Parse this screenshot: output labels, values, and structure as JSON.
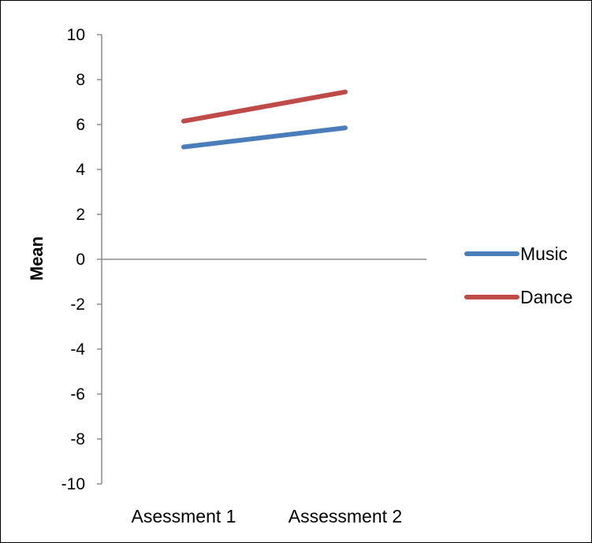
{
  "chart_data": {
    "type": "line",
    "title": "",
    "xlabel": "",
    "ylabel": "Mean",
    "ylim": [
      -10,
      10
    ],
    "yticks": [
      10,
      8,
      6,
      4,
      2,
      0,
      -2,
      -4,
      -6,
      -8,
      -10
    ],
    "categories": [
      "Asessment 1",
      "Assessment 2"
    ],
    "series": [
      {
        "name": "Music",
        "values": [
          5.0,
          5.85
        ],
        "color": "#4a7ebb"
      },
      {
        "name": "Dance",
        "values": [
          6.15,
          7.45
        ],
        "color": "#be4b48"
      }
    ],
    "legend_position": "right",
    "grid": false
  }
}
